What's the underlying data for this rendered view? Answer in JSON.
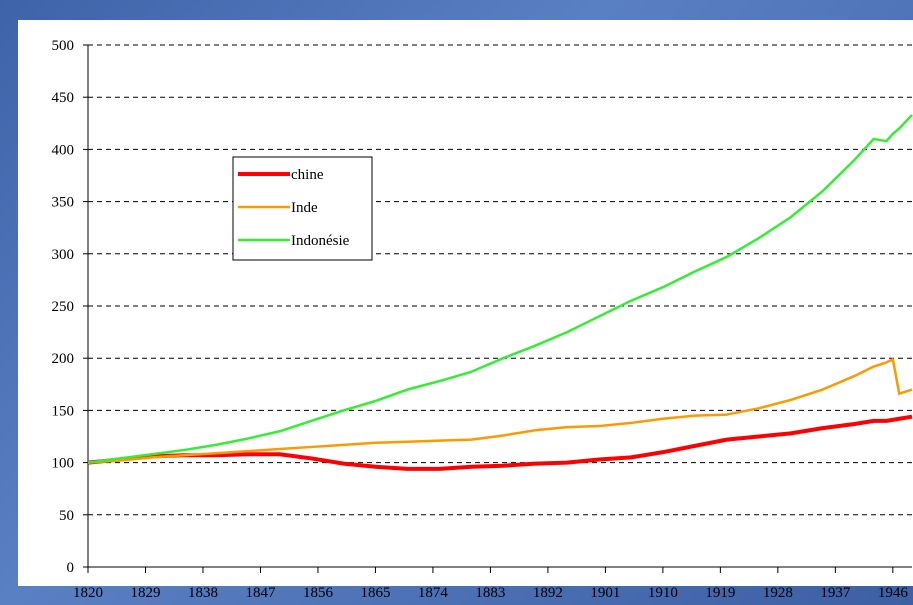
{
  "chart_data": {
    "type": "line",
    "x": [
      1820,
      1825,
      1830,
      1835,
      1840,
      1845,
      1850,
      1855,
      1860,
      1865,
      1870,
      1875,
      1880,
      1885,
      1890,
      1895,
      1900,
      1905,
      1910,
      1915,
      1920,
      1925,
      1930,
      1935,
      1940,
      1943,
      1945,
      1946,
      1947,
      1949
    ],
    "series": [
      {
        "name": "chine",
        "color": "#ff0000",
        "values": [
          100,
          103,
          106,
          107,
          107,
          108,
          108,
          104,
          99,
          96,
          94,
          94,
          96,
          97,
          99,
          100,
          103,
          105,
          110,
          116,
          122,
          125,
          128,
          133,
          137,
          140,
          140,
          141,
          142,
          144
        ]
      },
      {
        "name": "Inde",
        "color": "#ff9900",
        "values": [
          100,
          102,
          105,
          107,
          109,
          111,
          113,
          115,
          117,
          119,
          120,
          121,
          122,
          126,
          131,
          134,
          135,
          138,
          142,
          145,
          146,
          152,
          160,
          170,
          183,
          192,
          196,
          199,
          166,
          170
        ]
      },
      {
        "name": "Indonésie",
        "color": "#33ee33",
        "values": [
          100,
          104,
          108,
          112,
          117,
          123,
          130,
          140,
          150,
          159,
          170,
          178,
          187,
          200,
          212,
          225,
          240,
          255,
          268,
          283,
          297,
          315,
          335,
          360,
          390,
          410,
          408,
          415,
          420,
          433
        ]
      }
    ],
    "xlim": [
      1820,
      1949
    ],
    "xticks": [
      1820,
      1829,
      1838,
      1847,
      1856,
      1865,
      1874,
      1883,
      1892,
      1901,
      1910,
      1919,
      1928,
      1937,
      1946
    ],
    "ylim": [
      0,
      500
    ],
    "yticks": [
      0,
      50,
      100,
      150,
      200,
      250,
      300,
      350,
      400,
      450,
      500
    ],
    "grid": true
  }
}
